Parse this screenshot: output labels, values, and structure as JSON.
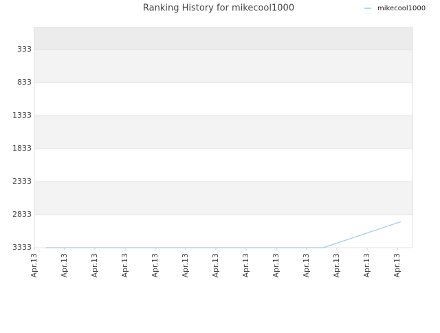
{
  "chart_data": {
    "type": "line",
    "title": "Ranking History for mikecool1000",
    "x": [
      0.39,
      9.55,
      12.11
    ],
    "series": [
      {
        "name": "mikecool1000",
        "color": "#9ecae1",
        "values": [
          3333,
          3333,
          2940
        ]
      }
    ],
    "xlim": [
      0,
      12.5
    ],
    "xticks": [
      {
        "value": 0,
        "label": "Apr.13"
      },
      {
        "value": 1,
        "label": "Apr.13"
      },
      {
        "value": 2,
        "label": "Apr.13"
      },
      {
        "value": 3,
        "label": "Apr.13"
      },
      {
        "value": 4,
        "label": "Apr.13"
      },
      {
        "value": 5,
        "label": "Apr.13"
      },
      {
        "value": 6,
        "label": "Apr.13"
      },
      {
        "value": 7,
        "label": "Apr.13"
      },
      {
        "value": 8,
        "label": "Apr.13"
      },
      {
        "value": 9,
        "label": "Apr.13"
      },
      {
        "value": 10,
        "label": "Apr.13"
      },
      {
        "value": 11,
        "label": "Apr.13"
      },
      {
        "value": 12,
        "label": "Apr.13"
      }
    ],
    "ylim": [
      3333,
      0
    ],
    "yticks": [
      333,
      833,
      1333,
      1833,
      2333,
      2833,
      3333
    ],
    "grid": true,
    "legend": "top-right"
  }
}
